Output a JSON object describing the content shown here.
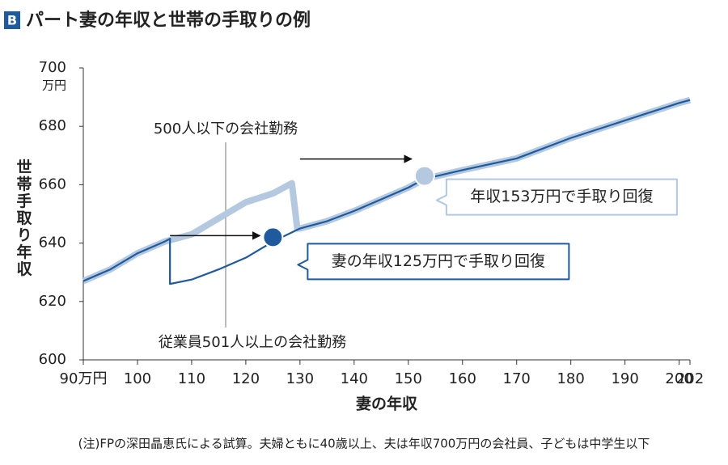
{
  "chart_data": {
    "type": "line",
    "badge": "B",
    "title": "パート妻の年収と世帯の手取りの例",
    "y_label": "世帯手取り年収",
    "y_unit": "万円",
    "x_label": "妻の年収",
    "note": "(注)FPの深田晶恵氏による試算。夫婦ともに40歳以上、夫は年収700万円の会社員、子どもは中学生以下",
    "xlim": [
      90,
      202
    ],
    "xticks": [
      {
        "value": 90,
        "label": "90万円"
      },
      100,
      110,
      120,
      130,
      140,
      150,
      160,
      170,
      180,
      190,
      200,
      202
    ],
    "ylim": [
      600,
      700
    ],
    "yticks": [
      600,
      620,
      640,
      660,
      680,
      700
    ],
    "series": [
      {
        "name": "500人以下の会社勤務",
        "color": "#b4c8e0",
        "x": [
          90,
          95,
          100,
          105,
          110,
          115,
          120,
          125,
          128.5,
          129.5,
          130,
          135,
          140,
          145,
          150,
          153,
          160,
          170,
          180,
          190,
          200,
          202
        ],
        "values": [
          627,
          631,
          636.5,
          640.5,
          643,
          648.5,
          654,
          657,
          660.5,
          645,
          645,
          647.5,
          651,
          655,
          659,
          662,
          665,
          669,
          676,
          682,
          688,
          689
        ]
      },
      {
        "name": "従業員501人以上の会社勤務",
        "color": "#1e5a9c",
        "x": [
          90,
          95,
          100,
          105,
          106,
          106,
          110,
          115,
          120,
          125,
          130,
          135,
          140,
          145,
          150,
          153,
          160,
          170,
          180,
          190,
          200,
          202
        ],
        "values": [
          627,
          631,
          636.5,
          640.5,
          641.5,
          626,
          627.5,
          631,
          635,
          640.5,
          645,
          647.5,
          651,
          655,
          659,
          662,
          665,
          669,
          676,
          682,
          688,
          689
        ]
      }
    ],
    "markers": [
      {
        "x": 125,
        "y": 642,
        "color": "#1e5a9c",
        "label": "妻の年収125万円で手取り回復",
        "arrow_from": 106
      },
      {
        "x": 153,
        "y": 663,
        "color": "#b4c8e0",
        "label": "年収153万円で手取り回復",
        "arrow_from": 130
      }
    ]
  }
}
